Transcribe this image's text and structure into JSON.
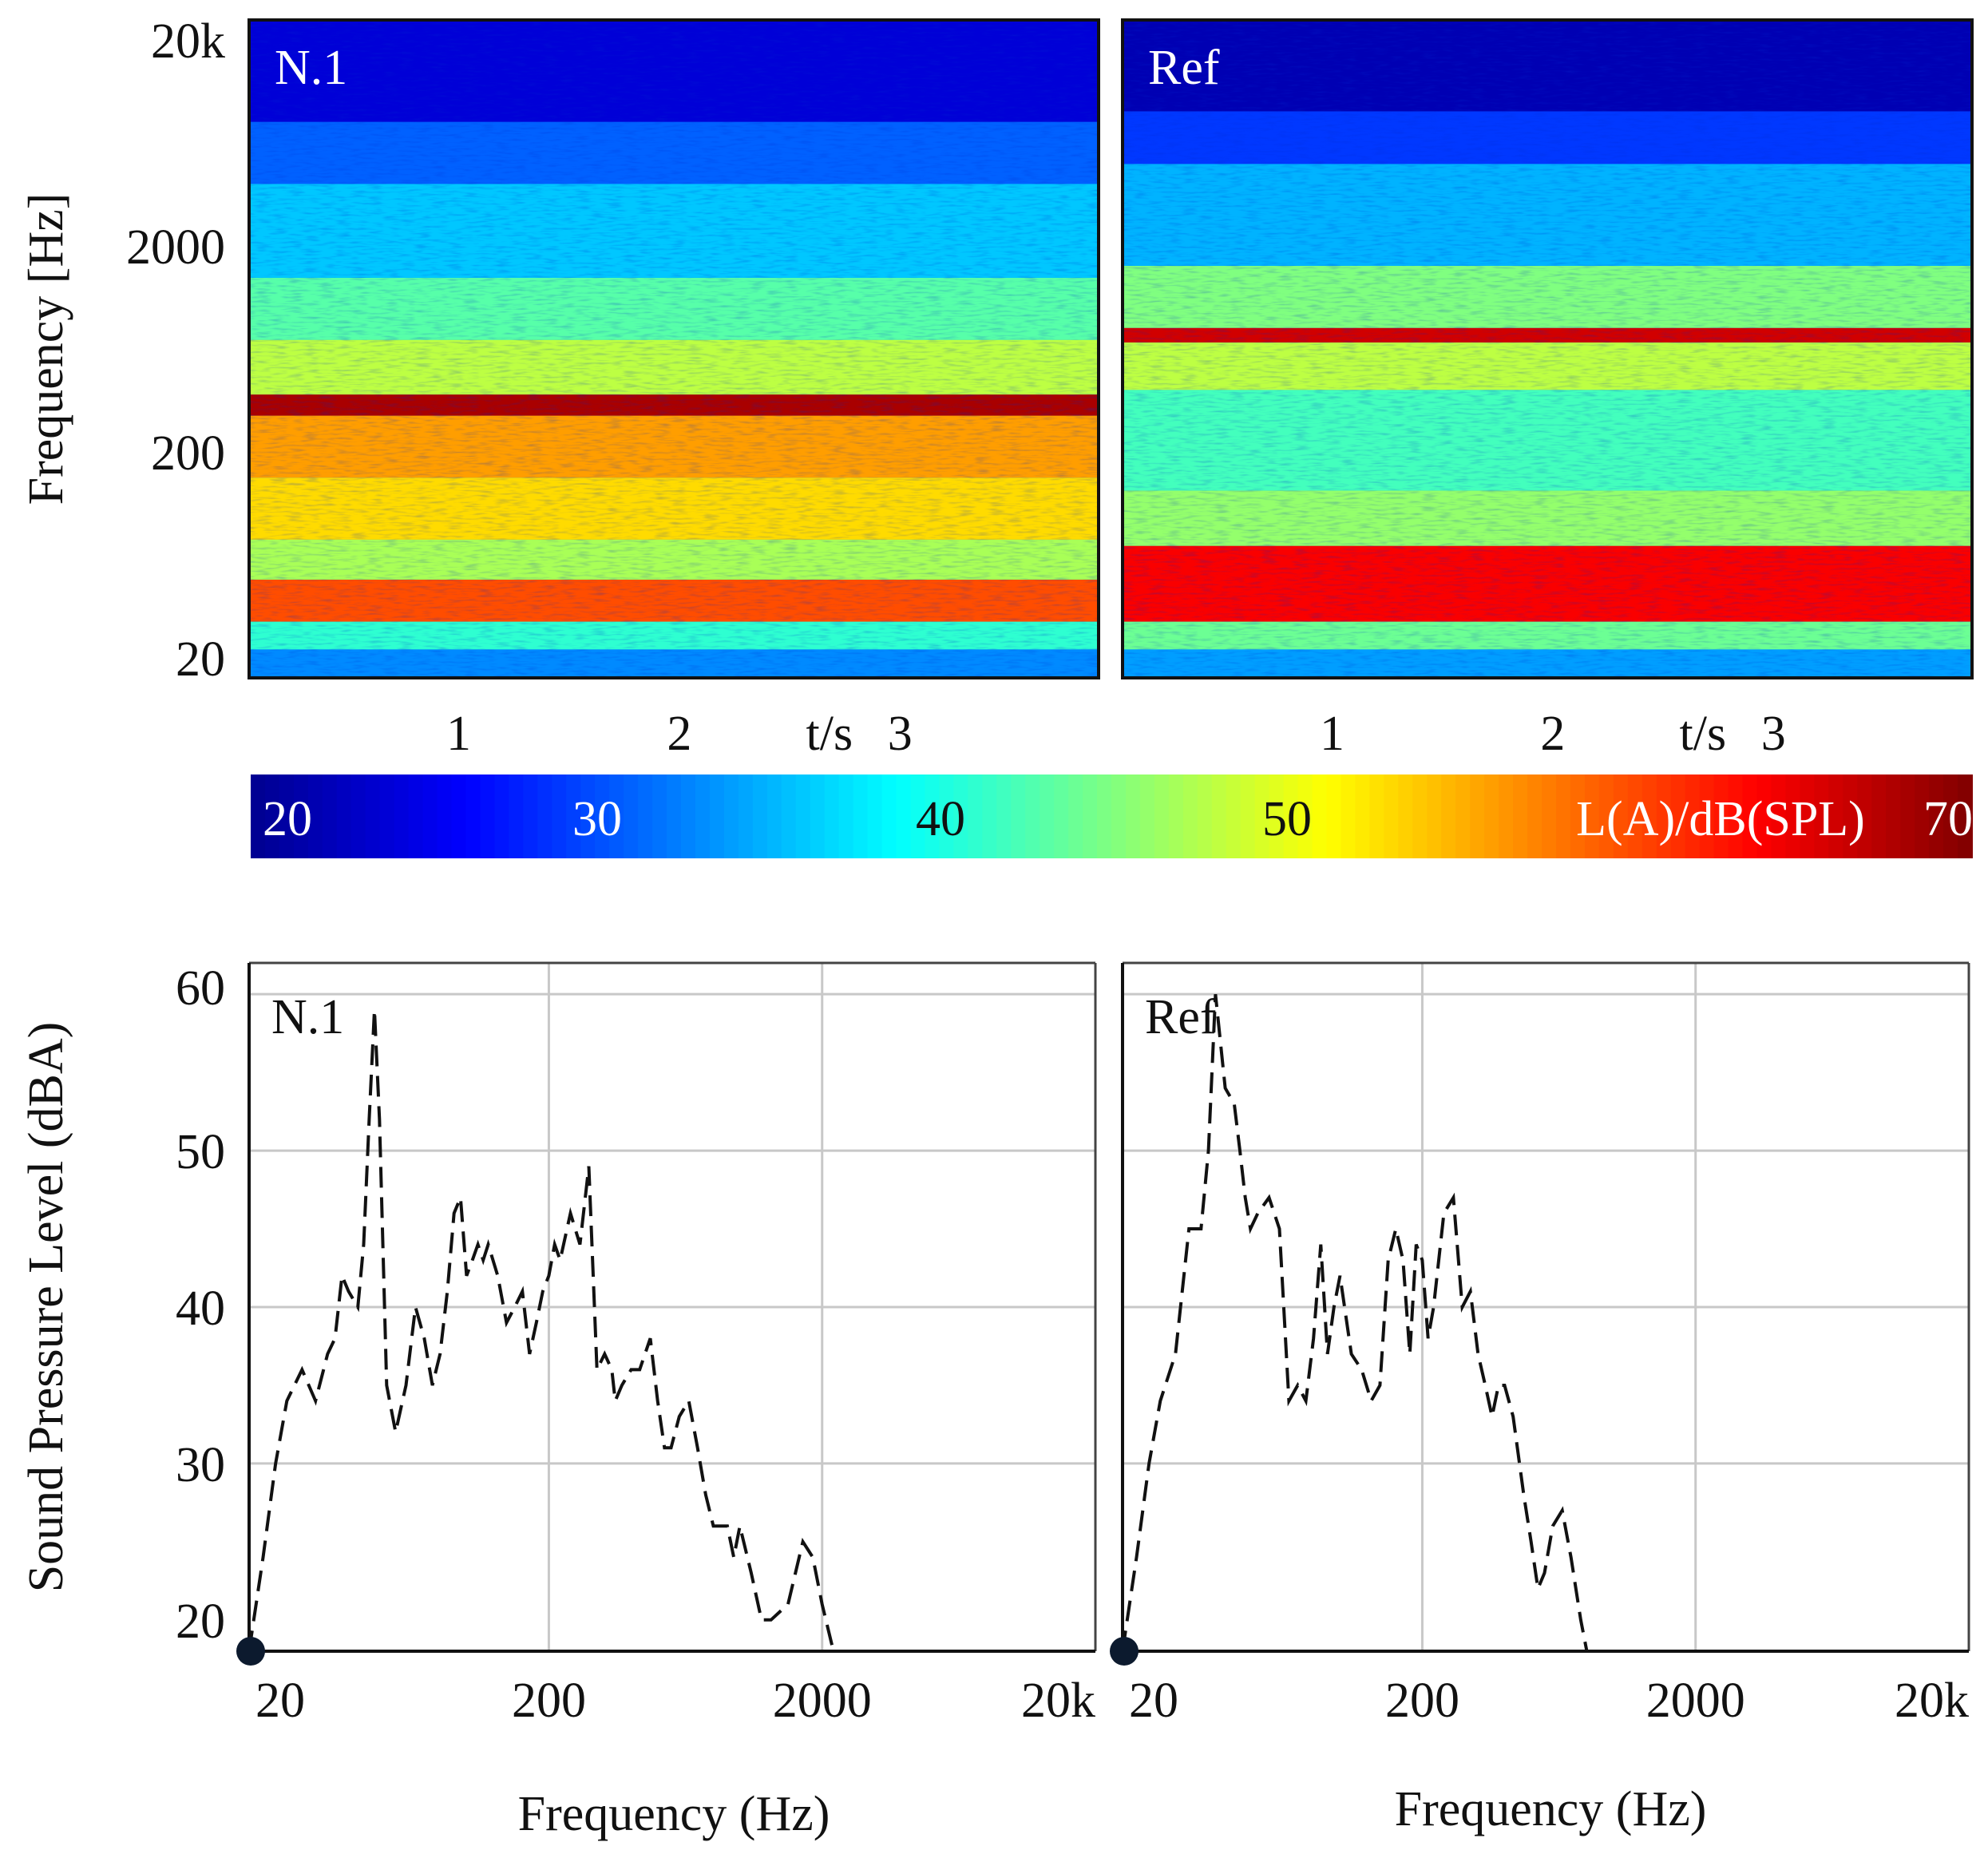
{
  "figure": {
    "spectrogram_ylabel": "Frequency [Hz]",
    "spectrum_ylabel": "Sound Pressure Level (dBA)",
    "spectrum_xlabel": "Frequency (Hz)",
    "time_label": "t/s"
  },
  "colorbar": {
    "ticks": [
      "20",
      "30",
      "40",
      "50"
    ],
    "max_tick": "70",
    "label": "L(A)/dB(SPL)",
    "colors": [
      "#00008f",
      "#0000ff",
      "#0080ff",
      "#00ffff",
      "#80ff80",
      "#ffff00",
      "#ff8000",
      "#ff0000",
      "#800000"
    ]
  },
  "chart_data": [
    {
      "type": "heatmap",
      "panel": "N.1",
      "title": "N.1",
      "ylabel": "Frequency [Hz]",
      "xlabel": "t/s",
      "x_ticks": [
        "1",
        "2",
        "3"
      ],
      "x_tick_values": [
        1,
        2,
        3
      ],
      "xlim": [
        0.05,
        3.9
      ],
      "y_ticks": [
        "20k",
        "2000",
        "200",
        "20"
      ],
      "y_tick_values": [
        20000,
        2000,
        200,
        20
      ],
      "ylim": [
        16,
        25000
      ],
      "y_scale": "log",
      "value_range": [
        20,
        70
      ],
      "bands": [
        {
          "f_low": 16,
          "f_high": 22,
          "level": 33
        },
        {
          "f_low": 22,
          "f_high": 30,
          "level": 41
        },
        {
          "f_low": 30,
          "f_high": 48,
          "level": 60
        },
        {
          "f_low": 48,
          "f_high": 75,
          "level": 47
        },
        {
          "f_low": 75,
          "f_high": 150,
          "level": 53
        },
        {
          "f_low": 150,
          "f_high": 300,
          "level": 56
        },
        {
          "f_low": 300,
          "f_high": 380,
          "level": 68
        },
        {
          "f_low": 380,
          "f_high": 700,
          "level": 48
        },
        {
          "f_low": 700,
          "f_high": 1400,
          "level": 43
        },
        {
          "f_low": 1400,
          "f_high": 4000,
          "level": 36
        },
        {
          "f_low": 4000,
          "f_high": 8000,
          "level": 31
        },
        {
          "f_low": 8000,
          "f_high": 25000,
          "level": 24
        }
      ]
    },
    {
      "type": "heatmap",
      "panel": "Ref",
      "title": "Ref",
      "ylabel": "Frequency [Hz]",
      "xlabel": "t/s",
      "x_ticks": [
        "1",
        "2",
        "3"
      ],
      "x_tick_values": [
        1,
        2,
        3
      ],
      "xlim": [
        0.05,
        3.9
      ],
      "y_ticks": [
        "20k",
        "2000",
        "200",
        "20"
      ],
      "y_tick_values": [
        20000,
        2000,
        200,
        20
      ],
      "ylim": [
        16,
        25000
      ],
      "y_scale": "log",
      "value_range": [
        20,
        70
      ],
      "bands": [
        {
          "f_low": 16,
          "f_high": 22,
          "level": 34
        },
        {
          "f_low": 22,
          "f_high": 30,
          "level": 44
        },
        {
          "f_low": 30,
          "f_high": 70,
          "level": 64
        },
        {
          "f_low": 70,
          "f_high": 130,
          "level": 46
        },
        {
          "f_low": 130,
          "f_high": 400,
          "level": 42
        },
        {
          "f_low": 400,
          "f_high": 680,
          "level": 48
        },
        {
          "f_low": 680,
          "f_high": 800,
          "level": 66
        },
        {
          "f_low": 800,
          "f_high": 1600,
          "level": 45
        },
        {
          "f_low": 1600,
          "f_high": 5000,
          "level": 35
        },
        {
          "f_low": 5000,
          "f_high": 9000,
          "level": 29
        },
        {
          "f_low": 9000,
          "f_high": 25000,
          "level": 22
        }
      ]
    },
    {
      "type": "line",
      "panel": "N.1",
      "title": "N.1",
      "xlabel": "Frequency (Hz)",
      "ylabel": "Sound Pressure Level (dBA)",
      "x_scale": "log",
      "xlim": [
        16,
        20000
      ],
      "ylim": [
        18,
        62
      ],
      "x_ticks": [
        "20",
        "200",
        "2000",
        "20k"
      ],
      "x_tick_values": [
        20,
        200,
        2000,
        20000
      ],
      "y_ticks": [
        20,
        30,
        40,
        50,
        60
      ],
      "grid": true,
      "line_style": "dashed",
      "series": [
        {
          "name": "N.1",
          "x": [
            16,
            18,
            20,
            22,
            25,
            28,
            31,
            33,
            35,
            37,
            40,
            42,
            44,
            46,
            48,
            51,
            55,
            60,
            65,
            70,
            75,
            80,
            85,
            90,
            95,
            100,
            105,
            110,
            115,
            120,
            130,
            140,
            150,
            160,
            170,
            180,
            190,
            200,
            210,
            220,
            240,
            260,
            280,
            300,
            320,
            340,
            350,
            370,
            400,
            430,
            470,
            500,
            530,
            560,
            600,
            650,
            700,
            750,
            800,
            850,
            900,
            950,
            1000,
            1100,
            1200,
            1300,
            1500,
            1700,
            1850,
            2000,
            2200,
            2400,
            2700,
            3000,
            3300,
            3700,
            4300,
            5000
          ],
          "y": [
            18,
            24,
            30,
            34,
            36,
            34,
            37,
            38,
            42,
            41,
            40,
            44,
            52,
            59,
            52,
            35,
            32,
            35,
            40,
            38,
            35,
            37,
            41,
            46,
            47,
            42,
            43,
            44,
            43,
            44,
            42,
            39,
            40,
            41,
            37,
            39,
            41,
            42,
            44,
            43,
            46,
            44,
            49,
            36,
            37,
            36,
            34,
            35,
            36,
            36,
            38,
            34,
            31,
            31,
            33,
            34,
            31,
            28,
            26,
            26,
            26,
            24,
            26,
            23,
            20,
            20,
            21,
            25,
            24,
            21,
            18,
            18,
            18,
            18,
            18,
            18,
            18,
            18
          ]
        }
      ]
    },
    {
      "type": "line",
      "panel": "Ref",
      "title": "Ref",
      "xlabel": "Frequency (Hz)",
      "ylabel": "Sound Pressure Level (dBA)",
      "x_scale": "log",
      "xlim": [
        16,
        20000
      ],
      "ylim": [
        18,
        62
      ],
      "x_ticks": [
        "20",
        "200",
        "2000",
        "20k"
      ],
      "x_tick_values": [
        20,
        200,
        2000,
        20000
      ],
      "y_ticks": [
        20,
        30,
        40,
        50,
        60
      ],
      "grid": true,
      "line_style": "dashed",
      "series": [
        {
          "name": "Ref",
          "x": [
            16,
            18,
            20,
            22,
            25,
            28,
            31,
            33,
            35,
            38,
            41,
            43,
            45,
            47,
            50,
            55,
            60,
            65,
            70,
            75,
            80,
            85,
            90,
            95,
            100,
            110,
            120,
            130,
            140,
            150,
            160,
            170,
            180,
            190,
            200,
            210,
            220,
            240,
            260,
            280,
            300,
            320,
            340,
            360,
            380,
            400,
            430,
            470,
            500,
            530,
            560,
            600,
            650,
            700,
            760,
            800,
            850,
            900,
            950,
            1000,
            1100,
            1200,
            1300,
            1400,
            1600,
            1800,
            2000,
            2200,
            2500,
            2800,
            3000,
            3300
          ],
          "y": [
            18,
            24,
            30,
            34,
            37,
            45,
            45,
            50,
            60,
            54,
            53,
            50,
            47,
            45,
            46,
            47,
            45,
            34,
            35,
            34,
            38,
            44,
            37,
            40,
            42,
            37,
            36,
            34,
            35,
            43,
            45,
            43,
            37,
            44,
            43,
            38,
            40,
            46,
            47,
            40,
            41,
            37,
            35,
            33,
            35,
            35,
            33,
            28,
            25,
            22,
            23,
            26,
            27,
            24,
            20,
            18,
            18,
            18,
            18,
            18,
            18,
            18,
            18,
            18,
            18,
            18,
            18,
            18,
            18,
            18,
            18,
            18
          ]
        }
      ]
    }
  ]
}
